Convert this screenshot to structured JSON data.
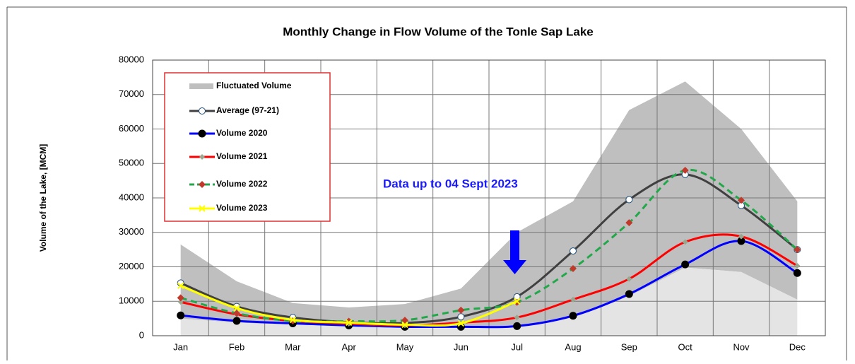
{
  "chart_data": {
    "type": "line",
    "title": "Monthly Change in Flow Volume of the Tonle Sap Lake",
    "y_label": "Volume of the Lake, [MCM]",
    "annotation": "Data up to 04 Sept 2023",
    "categories": [
      "Jan",
      "Feb",
      "Mar",
      "Apr",
      "May",
      "Jun",
      "Jul",
      "Aug",
      "Sep",
      "Oct",
      "Nov",
      "Dec"
    ],
    "ylim": [
      0,
      80000
    ],
    "yticks": [
      0,
      10000,
      20000,
      30000,
      40000,
      50000,
      60000,
      70000,
      80000
    ],
    "grid": true,
    "legend": "upper left",
    "range": {
      "name": "Fluctuated Volume",
      "color": "#bfbfbf",
      "min_color": "#e4e4e4",
      "max": [
        26500,
        15800,
        9500,
        8200,
        9200,
        13700,
        30000,
        39000,
        65500,
        73800,
        60000,
        39000
      ],
      "min": [
        5000,
        3800,
        3200,
        2700,
        2500,
        2400,
        2600,
        5200,
        11500,
        19800,
        18500,
        10500
      ]
    },
    "series": [
      {
        "name": "Average (97-21)",
        "color": "#404040",
        "marker": "circle-open",
        "line_style": "solid",
        "values": [
          15300,
          8500,
          5300,
          3900,
          3700,
          5500,
          11300,
          24600,
          39500,
          46800,
          37800,
          25000
        ]
      },
      {
        "name": "Volume 2020",
        "color": "#0000ff",
        "marker": "circle-black",
        "line_style": "solid",
        "values": [
          5900,
          4300,
          3600,
          3000,
          2600,
          2600,
          2800,
          5800,
          12100,
          20700,
          27500,
          18200
        ]
      },
      {
        "name": "Volume 2021",
        "color": "#ff0000",
        "marker": "diamond-gray",
        "line_style": "solid",
        "values": [
          9800,
          6200,
          4300,
          3500,
          3000,
          3800,
          5300,
          10500,
          16500,
          27200,
          28800,
          20300
        ]
      },
      {
        "name": "Volume 2022",
        "color": "#22a84a",
        "marker": "diamond-red",
        "line_style": "dashed",
        "values": [
          11000,
          6500,
          4300,
          4200,
          4500,
          7400,
          9700,
          19500,
          32800,
          48000,
          39300,
          25000
        ]
      },
      {
        "name": "Volume 2023",
        "color": "#ffff00",
        "marker": "x",
        "line_style": "solid",
        "values": [
          14500,
          8000,
          4600,
          3800,
          3200,
          3600,
          10000,
          null,
          null,
          null,
          null,
          null
        ]
      }
    ]
  }
}
